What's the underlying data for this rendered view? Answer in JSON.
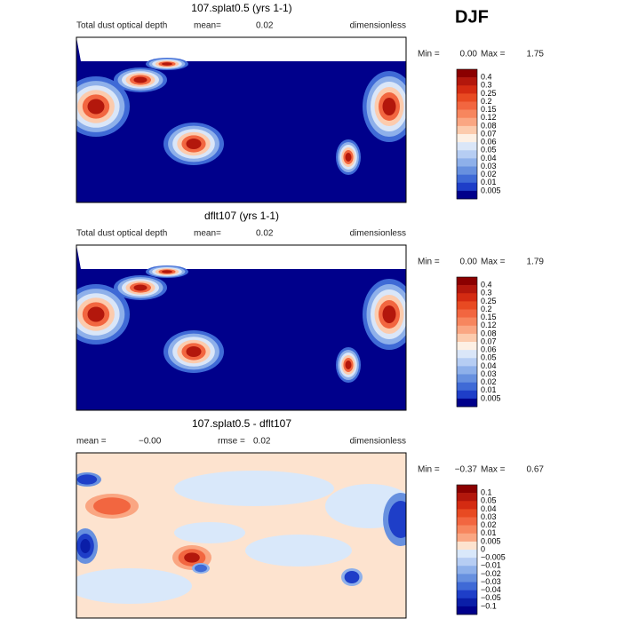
{
  "season": "DJF",
  "panels": [
    {
      "title": "107.splat0.5 (yrs 1-1)",
      "field": "Total dust optical depth",
      "mean_label": "mean=",
      "mean": "0.02",
      "units": "dimensionless",
      "min_label": "Min =",
      "min": "0.00",
      "max_label": "Max =",
      "max": "1.75",
      "levels": [
        "0.4",
        "0.3",
        "0.25",
        "0.2",
        "0.15",
        "0.12",
        "0.08",
        "0.07",
        "0.06",
        "0.05",
        "0.04",
        "0.03",
        "0.02",
        "0.01",
        "0.005"
      ],
      "colors": [
        "#8b0000",
        "#b3170c",
        "#d42b12",
        "#e84a22",
        "#f26640",
        "#f7865e",
        "#faa682",
        "#fccbad",
        "#fdf0e4",
        "#dae6f8",
        "#b6cdf3",
        "#8eb0ea",
        "#6790df",
        "#3f6ad6",
        "#1e3ec8",
        "#00008b"
      ]
    },
    {
      "title": "dflt107 (yrs 1-1)",
      "field": "Total dust optical depth",
      "mean_label": "mean=",
      "mean": "0.02",
      "units": "dimensionless",
      "min_label": "Min =",
      "min": "0.00",
      "max_label": "Max =",
      "max": "1.79",
      "levels": [
        "0.4",
        "0.3",
        "0.25",
        "0.2",
        "0.15",
        "0.12",
        "0.08",
        "0.07",
        "0.06",
        "0.05",
        "0.04",
        "0.03",
        "0.02",
        "0.01",
        "0.005"
      ],
      "colors": [
        "#8b0000",
        "#b3170c",
        "#d42b12",
        "#e84a22",
        "#f26640",
        "#f7865e",
        "#faa682",
        "#fccbad",
        "#fdf0e4",
        "#dae6f8",
        "#b6cdf3",
        "#8eb0ea",
        "#6790df",
        "#3f6ad6",
        "#1e3ec8",
        "#00008b"
      ]
    },
    {
      "title": "107.splat0.5 - dflt107",
      "mean_label": "mean =",
      "mean": "−0.00",
      "rmse_label": "rmse =",
      "rmse": "0.02",
      "units": "dimensionless",
      "min_label": "Min =",
      "min": "−0.37",
      "max_label": "Max =",
      "max": "0.67",
      "levels": [
        "0.1",
        "0.05",
        "0.04",
        "0.03",
        "0.02",
        "0.01",
        "0.005",
        "0",
        "−0.005",
        "−0.01",
        "−0.02",
        "−0.03",
        "−0.04",
        "−0.05",
        "−0.1"
      ],
      "colors": [
        "#8b0000",
        "#b3170c",
        "#d42b12",
        "#e84a22",
        "#f26640",
        "#f7865e",
        "#faa682",
        "#fde3cf",
        "#d9e8fa",
        "#b6cdf3",
        "#8eb0ea",
        "#6790df",
        "#3f6ad6",
        "#1e3ec8",
        "#0a1ea8",
        "#00008b"
      ]
    }
  ]
}
